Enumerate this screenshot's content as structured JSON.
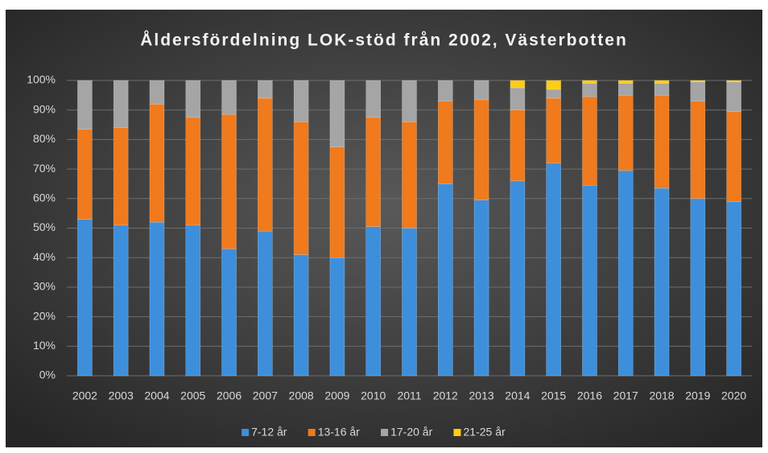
{
  "chart_data": {
    "type": "stacked_bar",
    "title": "Åldersfördelning LOK-stöd från 2002, Västerbotten",
    "categories": [
      "2002",
      "2003",
      "2004",
      "2005",
      "2006",
      "2007",
      "2008",
      "2009",
      "2010",
      "2011",
      "2012",
      "2013",
      "2014",
      "2015",
      "2016",
      "2017",
      "2018",
      "2019",
      "2020"
    ],
    "series": [
      {
        "name": "7-12 år",
        "color": "#3d8fdc",
        "values": [
          53,
          51,
          52,
          51,
          43,
          49,
          41,
          40,
          50.5,
          50,
          65,
          59.5,
          66,
          72,
          64.5,
          69.5,
          63.5,
          60,
          59
        ]
      },
      {
        "name": "13-16 år",
        "color": "#f07a1c",
        "values": [
          30.5,
          33,
          40,
          36.5,
          45.5,
          45,
          45,
          37.5,
          37,
          36,
          28,
          34,
          24,
          22,
          30,
          25.5,
          31.5,
          33,
          30.5
        ]
      },
      {
        "name": "17-20 år",
        "color": "#a5a5a5",
        "values": [
          16.5,
          16,
          8,
          12.5,
          11.5,
          6,
          14,
          22.5,
          12.5,
          14,
          7,
          6.5,
          7.5,
          3,
          4.5,
          4,
          4,
          6.5,
          10
        ]
      },
      {
        "name": "21-25 år",
        "color": "#ffcc14",
        "values": [
          0,
          0,
          0,
          0,
          0,
          0,
          0,
          0,
          0,
          0,
          0,
          0,
          2.5,
          3,
          1,
          1,
          1,
          0.5,
          0.5
        ]
      }
    ],
    "ylim": [
      0,
      100
    ],
    "yticks": [
      {
        "value": 0,
        "label": "0%"
      },
      {
        "value": 10,
        "label": "10%"
      },
      {
        "value": 20,
        "label": "20%"
      },
      {
        "value": 30,
        "label": "30%"
      },
      {
        "value": 40,
        "label": "40%"
      },
      {
        "value": 50,
        "label": "50%"
      },
      {
        "value": 60,
        "label": "60%"
      },
      {
        "value": 70,
        "label": "70%"
      },
      {
        "value": 80,
        "label": "80%"
      },
      {
        "value": 90,
        "label": "90%"
      },
      {
        "value": 100,
        "label": "100%"
      }
    ],
    "grid": true,
    "legend": "bottom"
  }
}
